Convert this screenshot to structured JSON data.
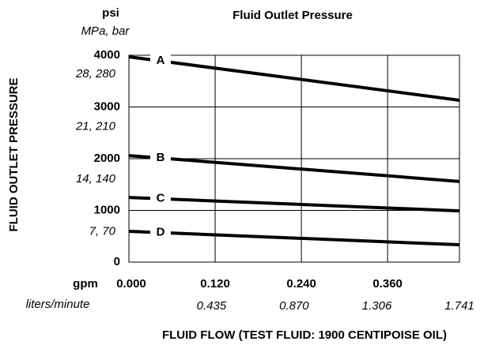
{
  "chart_data": {
    "type": "line",
    "title": "Fluid Outlet Pressure",
    "y_label": "FLUID OUTLET PRESSURE",
    "x_label": "FLUID FLOW (TEST FLUID: 1900 CENTIPOISE OIL)",
    "y_unit": "psi",
    "y2_unit": "MPa, bar",
    "x_unit": "gpm",
    "x2_unit": "liters/minute",
    "x": [
      0,
      0.46
    ],
    "xlim": [
      0,
      0.46
    ],
    "xticks": [
      {
        "value": 0,
        "label": "0.000"
      },
      {
        "value": 0.12,
        "label": "0.120"
      },
      {
        "value": 0.24,
        "label": "0.240"
      },
      {
        "value": 0.36,
        "label": "0.360"
      }
    ],
    "x2lim": [
      0,
      1.741
    ],
    "x2ticks": [
      0.435,
      {
        "value": 0.87,
        "label": "0.870"
      },
      1.306,
      1.741
    ],
    "ylim": [
      0,
      4000
    ],
    "yticks": [
      0,
      1000,
      2000,
      3000,
      4000
    ],
    "y2lim": [
      0,
      27.58
    ],
    "y2ticks": [
      {
        "value": 7,
        "label": "7, 70"
      },
      {
        "value": 14,
        "label": "14, 140"
      },
      {
        "value": 21,
        "label": "21, 210"
      },
      {
        "value": 28,
        "label": "28, 280"
      }
    ],
    "grid": true,
    "series": [
      {
        "name": "A",
        "color": "#000000",
        "values": [
          3970,
          3130
        ]
      },
      {
        "name": "B",
        "color": "#000000",
        "values": [
          2060,
          1560
        ]
      },
      {
        "name": "C",
        "color": "#000000",
        "values": [
          1250,
          990
        ]
      },
      {
        "name": "D",
        "color": "#000000",
        "values": [
          595,
          335
        ]
      }
    ]
  }
}
